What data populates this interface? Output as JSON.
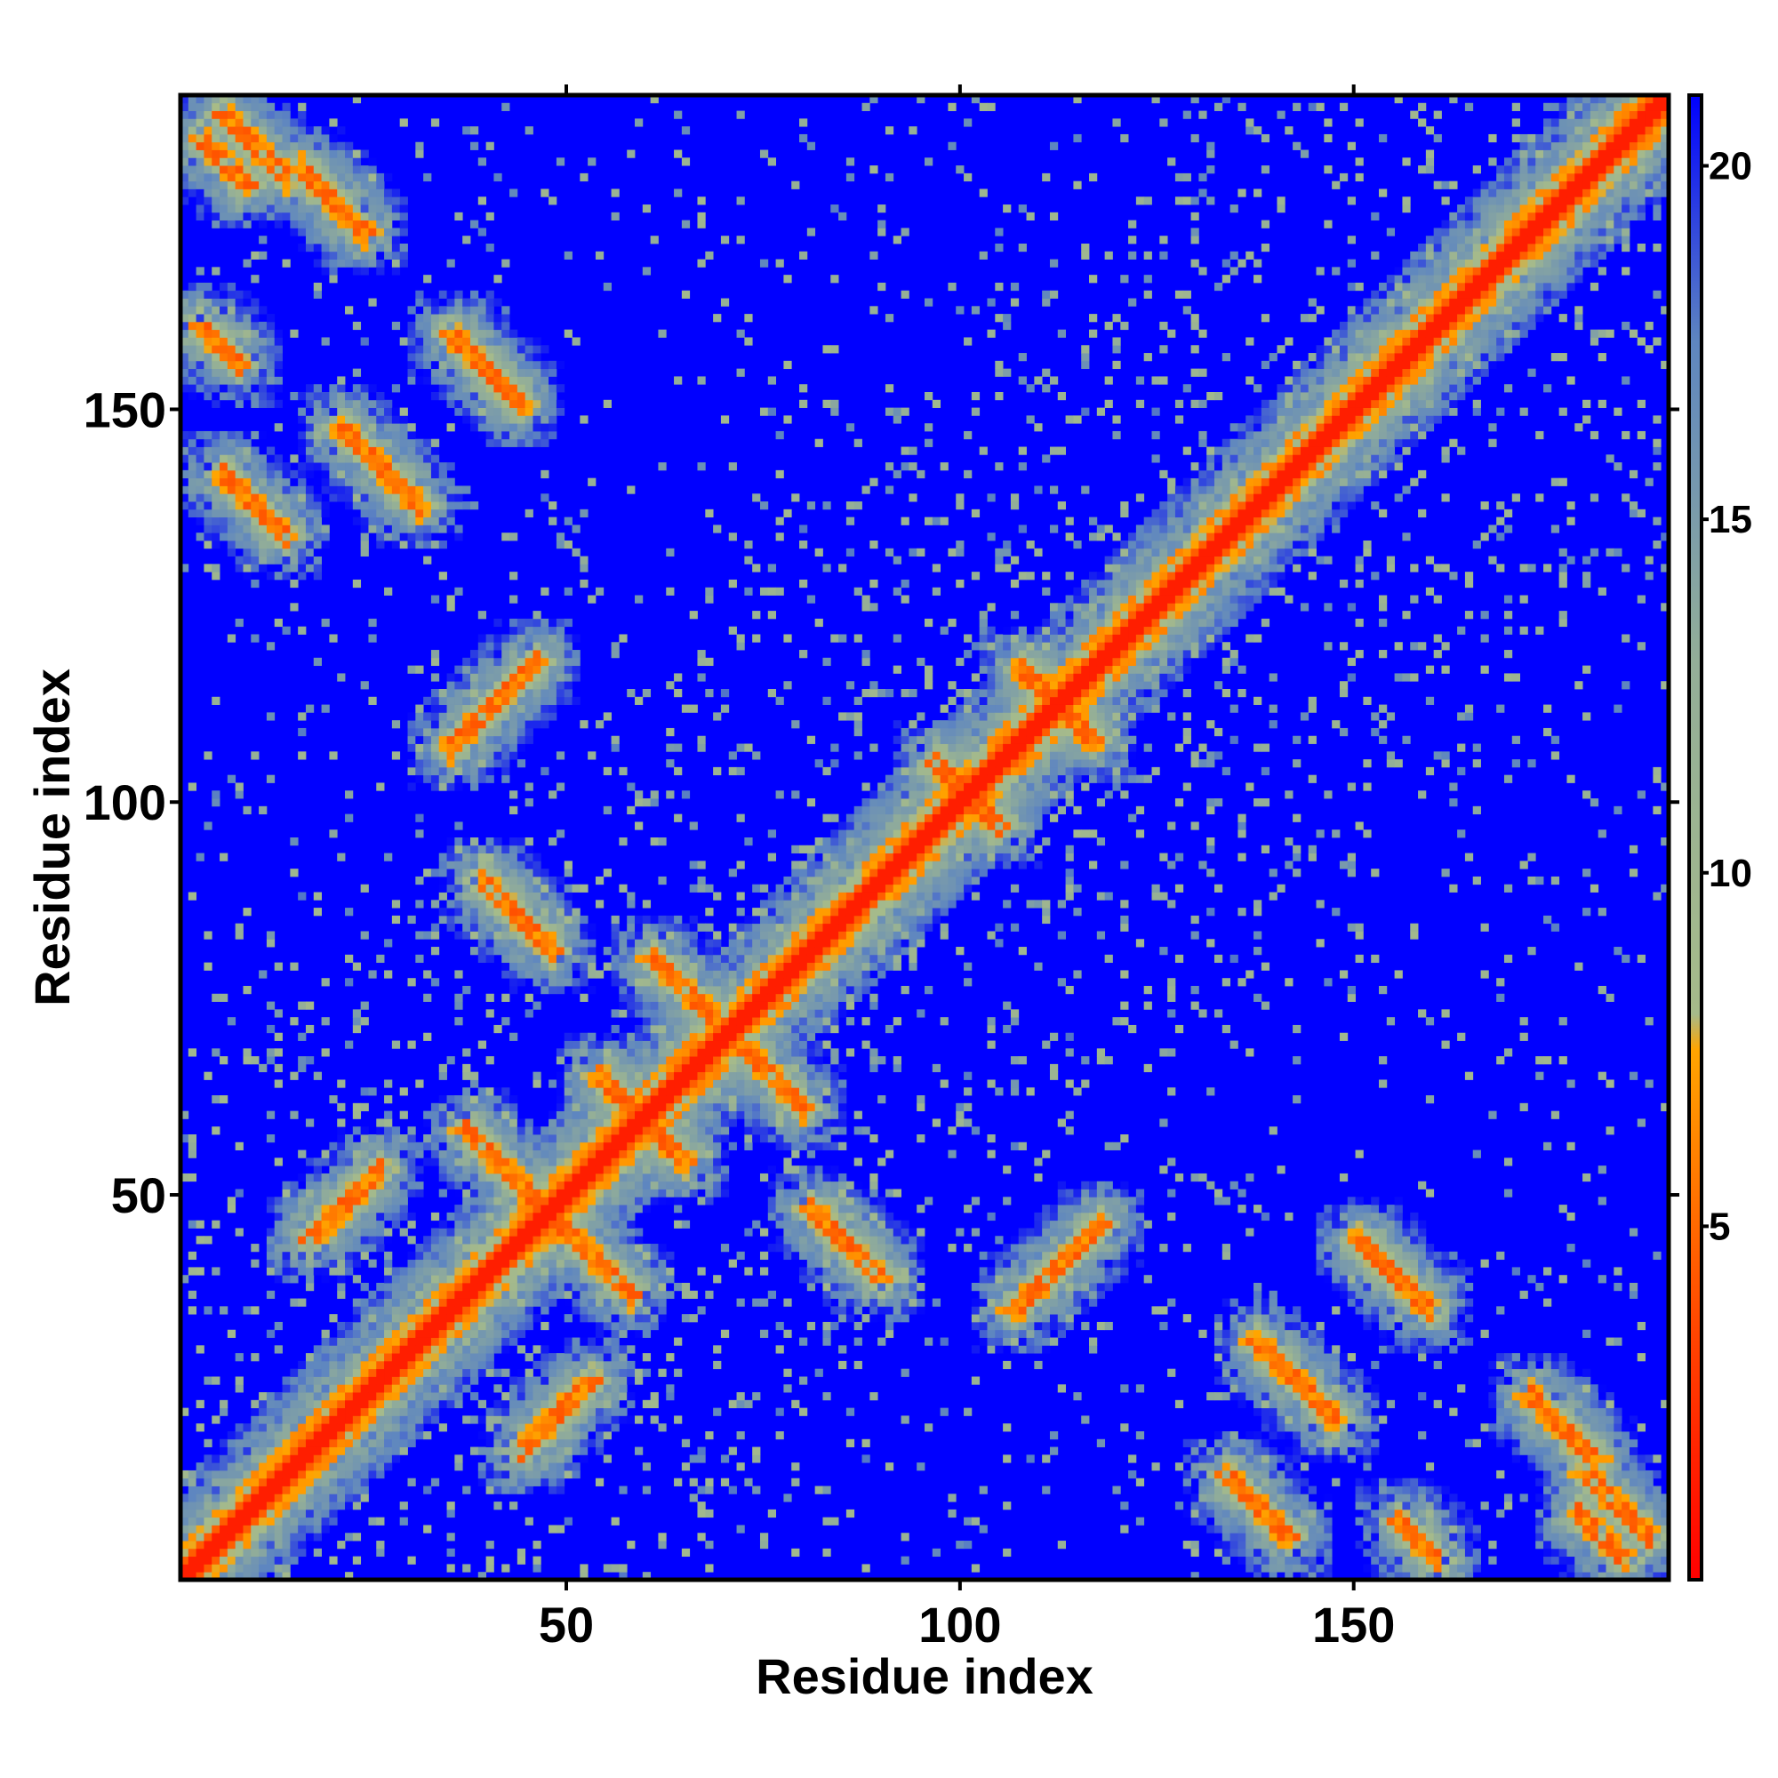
{
  "chart_data": {
    "type": "heatmap",
    "title": "",
    "xlabel": "Residue index",
    "ylabel": "Residue index",
    "n_residues": 190,
    "xlim": [
      1,
      190
    ],
    "ylim": [
      1,
      190
    ],
    "x_ticks": [
      {
        "value": 50,
        "label": "50"
      },
      {
        "value": 100,
        "label": "100"
      },
      {
        "value": 150,
        "label": "150"
      }
    ],
    "y_ticks": [
      {
        "value": 50,
        "label": "50"
      },
      {
        "value": 100,
        "label": "100"
      },
      {
        "value": 150,
        "label": "150"
      }
    ],
    "value_range": [
      0,
      21
    ],
    "colorbar": {
      "ticks": [
        {
          "value": 5,
          "label": "5"
        },
        {
          "value": 10,
          "label": "10"
        },
        {
          "value": 15,
          "label": "15"
        },
        {
          "value": 20,
          "label": "20"
        }
      ],
      "stops": [
        {
          "value": 0,
          "color": "#ff0000"
        },
        {
          "value": 3.5,
          "color": "#ff4500"
        },
        {
          "value": 7.5,
          "color": "#ffa500"
        },
        {
          "value": 8,
          "color": "#a6bb8a"
        },
        {
          "value": 13,
          "color": "#93ae98"
        },
        {
          "value": 17.5,
          "color": "#5e86c0"
        },
        {
          "value": 21,
          "color": "#0000ff"
        }
      ]
    },
    "colors": {
      "near": "#ff0000",
      "contact": "#ff6a00",
      "mid": "#9fb68f",
      "far": "#0000ff"
    },
    "background_value": 21,
    "contact_bands": [
      {
        "a": 16,
        "b": 43,
        "len": 10,
        "orient": "parallel"
      },
      {
        "a": 36,
        "b": 57,
        "len": 10,
        "orient": "anti",
        "sum": 93
      },
      {
        "a": 38,
        "b": 88,
        "len": 10,
        "orient": "anti",
        "sum": 127
      },
      {
        "a": 53,
        "b": 64,
        "len": 10,
        "orient": "anti",
        "sum": 117
      },
      {
        "a": 60,
        "b": 79,
        "len": 9,
        "orient": "anti",
        "sum": 139
      },
      {
        "a": 96,
        "b": 104,
        "len": 8,
        "orient": "anti",
        "sum": 200
      },
      {
        "a": 107,
        "b": 116,
        "len": 9,
        "orient": "anti",
        "sum": 223
      },
      {
        "a": 34,
        "b": 106,
        "len": 12,
        "orient": "parallel"
      },
      {
        "a": 137,
        "b": 30,
        "len": 11,
        "orient": "anti",
        "sum": 167
      },
      {
        "a": 150,
        "b": 43,
        "len": 10,
        "orient": "anti",
        "sum": 193
      },
      {
        "a": 172,
        "b": 23,
        "len": 9,
        "orient": "anti",
        "sum": 195
      },
      {
        "a": 178,
        "b": 8,
        "len": 7,
        "orient": "anti",
        "sum": 186
      },
      {
        "a": 155,
        "b": 7,
        "len": 6,
        "orient": "anti",
        "sum": 162
      },
      {
        "a": 133,
        "b": 13,
        "len": 9,
        "orient": "anti",
        "sum": 146
      },
      {
        "a": 179,
        "b": 13,
        "len": 9,
        "orient": "anti",
        "sum": 192
      }
    ]
  }
}
